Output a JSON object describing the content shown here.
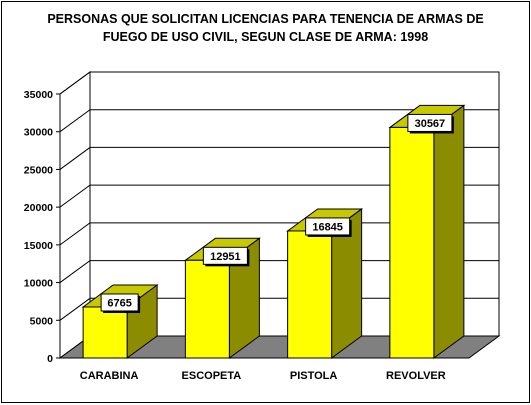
{
  "chart_data": {
    "type": "bar",
    "title_lines": [
      "PERSONAS QUE SOLICITAN LICENCIAS PARA TENENCIA DE ARMAS DE",
      "FUEGO DE USO CIVIL, SEGUN CLASE DE ARMA: 1998"
    ],
    "categories": [
      "CARABINA",
      "ESCOPETA",
      "PISTOLA",
      "REVOLVER"
    ],
    "values": [
      6765,
      12951,
      16845,
      30567
    ],
    "data_labels": [
      "6765",
      "12951",
      "16845",
      "30567"
    ],
    "y_ticks": [
      0,
      5000,
      10000,
      15000,
      20000,
      25000,
      30000,
      35000
    ],
    "ylim": [
      0,
      35000
    ],
    "grid": true,
    "three_d": true,
    "colors": {
      "bar_front": "#ffff00",
      "bar_side": "#8c8c00",
      "bar_top": "#c8c800",
      "floor": "#808080",
      "grid": "#000000",
      "label_box": "#ffffff"
    }
  }
}
